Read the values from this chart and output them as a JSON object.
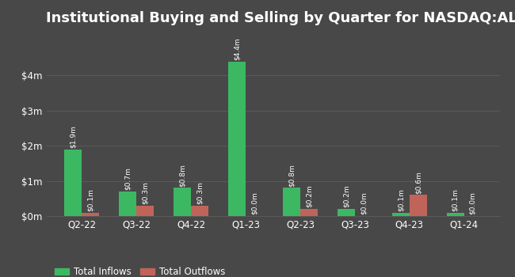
{
  "title": "Institutional Buying and Selling by Quarter for NASDAQ:ALTY",
  "quarters": [
    "Q2-22",
    "Q3-22",
    "Q4-22",
    "Q1-23",
    "Q2-23",
    "Q3-23",
    "Q4-23",
    "Q1-24"
  ],
  "inflows": [
    1.9,
    0.7,
    0.8,
    4.4,
    0.8,
    0.2,
    0.1,
    0.1
  ],
  "outflows": [
    0.1,
    0.3,
    0.3,
    0.0,
    0.2,
    0.0,
    0.6,
    0.0
  ],
  "inflow_labels": [
    "$1.9m",
    "$0.7m",
    "$0.8m",
    "$4.4m",
    "$0.8m",
    "$0.2m",
    "$0.1m",
    "$0.1m"
  ],
  "outflow_labels": [
    "$0.1m",
    "$0.3m",
    "$0.3m",
    "$0.0m",
    "$0.2m",
    "$0.0m",
    "$0.6m",
    "$0.0m"
  ],
  "inflow_color": "#3cb862",
  "outflow_color": "#c0645a",
  "bg_color": "#484848",
  "text_color": "#ffffff",
  "grid_color": "#5a5a5a",
  "legend_inflow": "Total Inflows",
  "legend_outflow": "Total Outflows",
  "ylim": [
    0,
    5.2
  ],
  "yticks": [
    0,
    1,
    2,
    3,
    4
  ],
  "ytick_labels": [
    "$0m",
    "$1m",
    "$2m",
    "$3m",
    "$4m"
  ],
  "bar_width": 0.32,
  "title_fontsize": 13,
  "label_fontsize": 6.5,
  "tick_fontsize": 8.5,
  "legend_fontsize": 8.5
}
